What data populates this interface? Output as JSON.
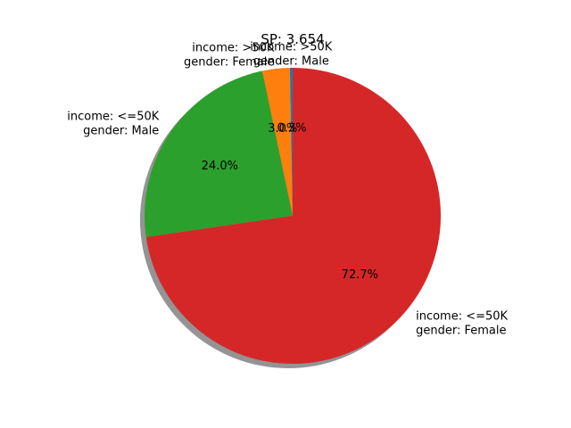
{
  "chart_data": {
    "type": "pie",
    "title": "SP: 3.654",
    "shadow": true,
    "start_angle_deg": 90,
    "direction": "counterclockwise",
    "slices": [
      {
        "label_lines": [
          "income: >50K",
          "gender: Male"
        ],
        "value": 0.3,
        "pct_label": "0.3%",
        "color": "#1f77b4"
      },
      {
        "label_lines": [
          "income: >50K",
          "gender: Female"
        ],
        "value": 3.0,
        "pct_label": "3.0%",
        "color": "#ff7f0e"
      },
      {
        "label_lines": [
          "income: <=50K",
          "gender: Male"
        ],
        "value": 24.0,
        "pct_label": "24.0%",
        "color": "#2ca02c"
      },
      {
        "label_lines": [
          "income: <=50K",
          "gender: Female"
        ],
        "value": 72.7,
        "pct_label": "72.7%",
        "color": "#d62728"
      }
    ]
  }
}
